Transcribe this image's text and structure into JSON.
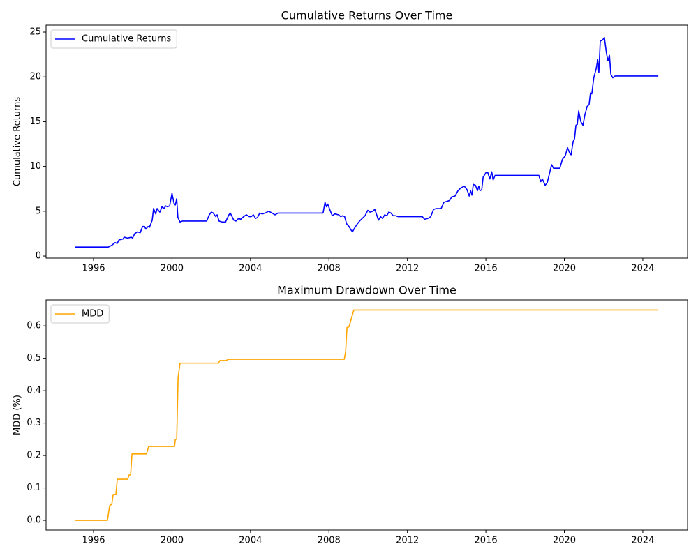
{
  "chart_data": [
    {
      "type": "line",
      "title": "Cumulative Returns Over Time",
      "ylabel": "Cumulative Returns",
      "x": [
        1995.07,
        1996.75,
        1996.93,
        1997.1,
        1997.2,
        1997.3,
        1997.5,
        1997.56,
        1997.74,
        1997.92,
        1997.99,
        1998.1,
        1998.24,
        1998.38,
        1998.5,
        1998.6,
        1998.67,
        1998.78,
        1998.85,
        1998.99,
        1999.06,
        1999.17,
        1999.24,
        1999.38,
        1999.49,
        1999.6,
        1999.67,
        1999.77,
        1999.88,
        2000.0,
        2000.1,
        2000.17,
        2000.24,
        2000.3,
        2000.41,
        2000.52,
        2001.77,
        2001.9,
        2002.0,
        2002.1,
        2002.23,
        2002.3,
        2002.4,
        2002.55,
        2002.73,
        2002.9,
        2002.97,
        2003.15,
        2003.26,
        2003.4,
        2003.5,
        2003.65,
        2003.79,
        2003.94,
        2004.04,
        2004.15,
        2004.26,
        2004.36,
        2004.47,
        2004.6,
        2004.75,
        2004.93,
        2005.1,
        2005.25,
        2005.4,
        2005.57,
        2007.7,
        2007.8,
        2007.87,
        2007.94,
        2008.04,
        2008.17,
        2008.3,
        2008.5,
        2008.6,
        2008.7,
        2008.8,
        2008.9,
        2009.02,
        2009.13,
        2009.2,
        2009.3,
        2009.45,
        2009.56,
        2009.7,
        2009.84,
        2009.98,
        2010.1,
        2010.23,
        2010.34,
        2010.45,
        2010.52,
        2010.63,
        2010.73,
        2010.84,
        2010.95,
        2011.05,
        2011.16,
        2011.27,
        2011.4,
        2011.52,
        2012.76,
        2012.87,
        2013.05,
        2013.19,
        2013.33,
        2013.47,
        2013.72,
        2013.86,
        2014.0,
        2014.15,
        2014.26,
        2014.43,
        2014.58,
        2014.72,
        2014.9,
        2015.04,
        2015.15,
        2015.22,
        2015.29,
        2015.36,
        2015.47,
        2015.57,
        2015.64,
        2015.7,
        2015.79,
        2015.86,
        2016.0,
        2016.1,
        2016.2,
        2016.3,
        2016.37,
        2016.47,
        2018.7,
        2018.8,
        2018.88,
        2019.02,
        2019.13,
        2019.24,
        2019.35,
        2019.45,
        2019.77,
        2019.9,
        2020.05,
        2020.16,
        2020.27,
        2020.34,
        2020.45,
        2020.52,
        2020.59,
        2020.66,
        2020.73,
        2020.84,
        2020.95,
        2021.05,
        2021.16,
        2021.26,
        2021.33,
        2021.4,
        2021.5,
        2021.62,
        2021.7,
        2021.76,
        2021.83,
        2021.94,
        2022.04,
        2022.15,
        2022.22,
        2022.3,
        2022.37,
        2022.47,
        2022.58,
        2024.79
      ],
      "series": [
        {
          "name": "Cumulative Returns",
          "color": "#0000ff",
          "values": [
            1.0,
            1.0,
            1.2,
            1.5,
            1.4,
            1.8,
            1.9,
            2.1,
            2.0,
            2.1,
            2.0,
            2.5,
            2.7,
            2.6,
            3.3,
            3.3,
            3.0,
            3.3,
            3.2,
            4.0,
            5.3,
            4.7,
            5.3,
            4.9,
            5.5,
            5.3,
            5.6,
            5.5,
            5.6,
            7.0,
            5.9,
            5.7,
            6.4,
            4.3,
            3.8,
            3.9,
            3.9,
            4.6,
            4.9,
            4.8,
            4.4,
            4.6,
            3.9,
            3.8,
            3.8,
            4.6,
            4.8,
            4.0,
            3.9,
            4.2,
            4.1,
            4.4,
            4.6,
            4.4,
            4.4,
            4.6,
            4.2,
            4.3,
            4.8,
            4.7,
            4.8,
            5.0,
            4.8,
            4.6,
            4.8,
            4.8,
            4.8,
            6.0,
            5.5,
            5.8,
            5.2,
            4.5,
            4.7,
            4.6,
            4.4,
            4.5,
            4.4,
            3.6,
            3.3,
            2.9,
            2.7,
            3.1,
            3.6,
            3.9,
            4.2,
            4.5,
            5.1,
            4.9,
            5.0,
            5.2,
            4.5,
            4.0,
            4.4,
            4.2,
            4.6,
            4.5,
            4.9,
            4.8,
            4.5,
            4.5,
            4.4,
            4.4,
            4.1,
            4.2,
            4.4,
            5.2,
            5.3,
            5.3,
            6.0,
            6.1,
            6.2,
            6.6,
            6.7,
            7.3,
            7.6,
            7.8,
            7.4,
            6.7,
            7.3,
            6.8,
            8.0,
            7.9,
            7.3,
            7.8,
            7.3,
            7.4,
            8.8,
            9.3,
            9.3,
            8.6,
            9.4,
            8.5,
            9.0,
            9.0,
            8.3,
            8.6,
            7.9,
            8.2,
            9.2,
            10.2,
            9.8,
            9.8,
            10.8,
            11.2,
            12.1,
            11.5,
            11.3,
            12.8,
            13.1,
            14.6,
            14.7,
            16.2,
            15.0,
            14.6,
            15.8,
            16.7,
            16.9,
            18.2,
            18.1,
            19.9,
            20.9,
            21.9,
            20.5,
            24.0,
            24.1,
            24.4,
            22.6,
            21.8,
            22.4,
            20.3,
            19.9,
            20.1,
            20.1
          ]
        }
      ],
      "xlim": [
        1993.58,
        2026.28
      ],
      "ylim": [
        -0.23,
        25.78
      ],
      "xticks": [
        1996,
        2000,
        2004,
        2008,
        2012,
        2016,
        2020,
        2024
      ],
      "yticks": [
        0,
        5,
        10,
        15,
        20,
        25
      ],
      "legend": "upper left"
    },
    {
      "type": "line",
      "title": "Maximum Drawdown Over Time",
      "ylabel": "MDD (%)",
      "x": [
        1995.07,
        1996.71,
        1996.82,
        1996.93,
        1997.0,
        1997.14,
        1997.21,
        1997.74,
        1997.81,
        1997.89,
        1997.96,
        1998.7,
        1998.81,
        2000.13,
        2000.17,
        2000.24,
        2000.31,
        2000.41,
        2002.37,
        2002.44,
        2002.76,
        2002.87,
        2008.78,
        2008.85,
        2008.92,
        2009.02,
        2009.13,
        2009.27,
        2024.79
      ],
      "series": [
        {
          "name": "MDD",
          "color": "#ffa500",
          "values": [
            0.0,
            0.0,
            0.045,
            0.05,
            0.08,
            0.08,
            0.127,
            0.127,
            0.14,
            0.14,
            0.205,
            0.205,
            0.228,
            0.228,
            0.25,
            0.25,
            0.44,
            0.485,
            0.485,
            0.493,
            0.493,
            0.497,
            0.497,
            0.52,
            0.595,
            0.597,
            0.62,
            0.649,
            0.649
          ]
        }
      ],
      "xlim": [
        1993.58,
        2026.28
      ],
      "ylim": [
        -0.03,
        0.68
      ],
      "xticks": [
        1996,
        2000,
        2004,
        2008,
        2012,
        2016,
        2020,
        2024
      ],
      "yticks": [
        {
          "value": 0,
          "label": "0.0"
        },
        0.1,
        0.2,
        0.3,
        0.4,
        0.5,
        0.6
      ],
      "legend": "upper left"
    }
  ]
}
